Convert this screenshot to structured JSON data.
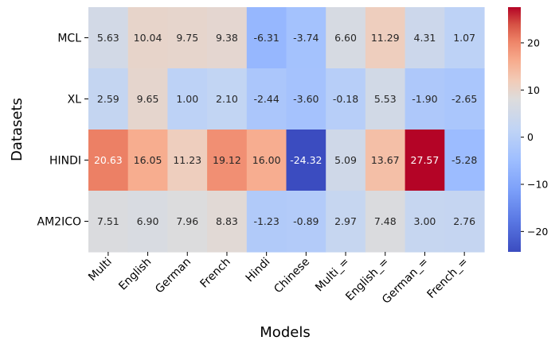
{
  "chart_data": {
    "type": "heatmap",
    "title": "",
    "xlabel": "Models",
    "ylabel": "Datasets",
    "x_categories": [
      "Multi",
      "English",
      "German",
      "French",
      "Hindi",
      "Chinese",
      "Multi_=",
      "English_=",
      "German_=",
      "French_="
    ],
    "y_categories": [
      "MCL",
      "XL",
      "HINDI",
      "AM2ICO"
    ],
    "values": [
      [
        5.63,
        10.04,
        9.75,
        9.38,
        -6.31,
        -3.74,
        6.6,
        11.29,
        4.31,
        1.07
      ],
      [
        2.59,
        9.65,
        1.0,
        2.1,
        -2.44,
        -3.6,
        -0.18,
        5.53,
        -1.9,
        -2.65
      ],
      [
        20.63,
        16.05,
        11.23,
        19.12,
        16.0,
        -24.32,
        5.09,
        13.67,
        27.57,
        -5.28
      ],
      [
        7.51,
        6.9,
        7.96,
        8.83,
        -1.23,
        -0.89,
        2.97,
        7.48,
        3.0,
        2.76
      ]
    ],
    "cell_labels": [
      [
        "5.63",
        "10.04",
        "9.75",
        "9.38",
        "-6.31",
        "-3.74",
        "6.60",
        "11.29",
        "4.31",
        "1.07"
      ],
      [
        "2.59",
        "9.65",
        "1.00",
        "2.10",
        "-2.44",
        "-3.60",
        "-0.18",
        "5.53",
        "-1.90",
        "-2.65"
      ],
      [
        "20.63",
        "16.05",
        "11.23",
        "19.12",
        "16.00",
        "-24.32",
        "5.09",
        "13.67",
        "27.57",
        "-5.28"
      ],
      [
        "7.51",
        "6.90",
        "7.96",
        "8.83",
        "-1.23",
        "-0.89",
        "2.97",
        "7.48",
        "3.00",
        "2.76"
      ]
    ],
    "colormap": "coolwarm",
    "vmin": -24.32,
    "vmax": 27.57,
    "center": 0,
    "colorbar_ticks": [
      20,
      10,
      0,
      -10,
      -20
    ],
    "colorbar_tick_labels": [
      "20",
      "10",
      "0",
      "−10",
      "−20"
    ]
  }
}
